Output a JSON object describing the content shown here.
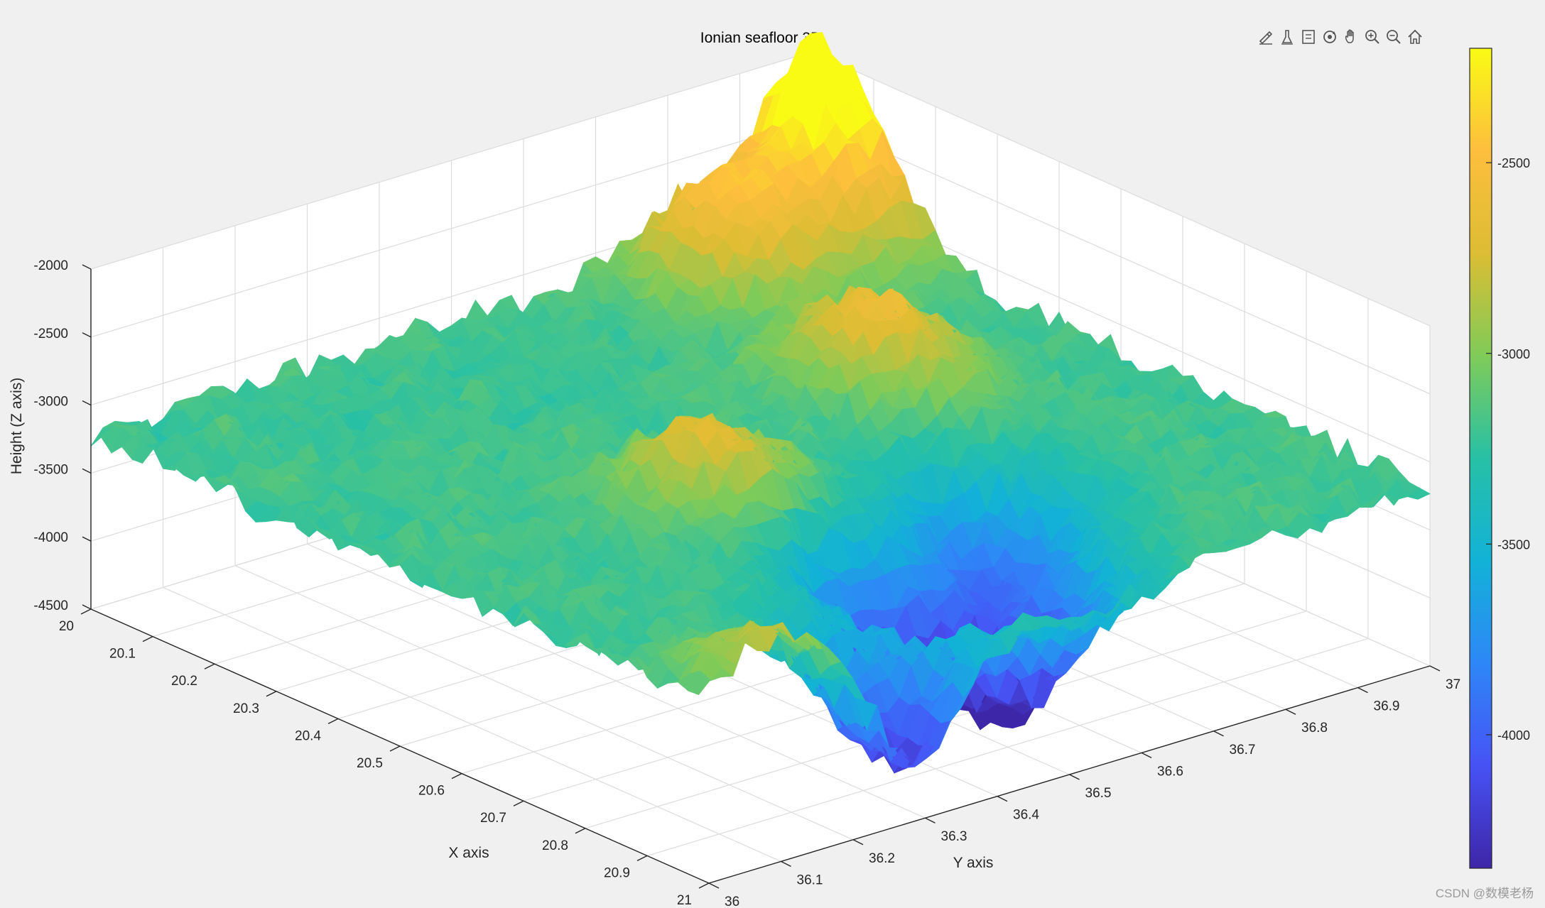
{
  "toolbar": {
    "icons": [
      "brush-icon",
      "data-tips-icon",
      "legend-icon",
      "rotate-3d-icon",
      "pan-hand-icon",
      "zoom-in-icon",
      "zoom-out-icon",
      "home-icon"
    ]
  },
  "watermark": "CSDN @数模老杨",
  "colors": {
    "background": "#f0f0f0",
    "axes_bg": "#ffffff",
    "grid": "#dcdcdc",
    "axis_line": "#262626",
    "colormap": [
      "#3e26a8",
      "#4752f5",
      "#2e87f7",
      "#12b2d7",
      "#27c0a6",
      "#80cb58",
      "#dcbd33",
      "#fdbe3d",
      "#f9fb15"
    ]
  },
  "chart_data": {
    "type": "surface",
    "title": "Ionian seafloor 3D",
    "xlabel": "X axis",
    "ylabel": "Y axis",
    "zlabel": "Height (Z axis)",
    "xlim": [
      20,
      21
    ],
    "ylim": [
      36,
      37
    ],
    "zlim": [
      -4500,
      -2000
    ],
    "xticks": [
      "20",
      "20.1",
      "20.2",
      "20.3",
      "20.4",
      "20.5",
      "20.6",
      "20.7",
      "20.8",
      "20.9",
      "21"
    ],
    "yticks": [
      "36",
      "36.1",
      "36.2",
      "36.3",
      "36.4",
      "36.5",
      "36.6",
      "36.7",
      "36.8",
      "36.9",
      "37"
    ],
    "zticks": [
      "-2000",
      "-2500",
      "-3000",
      "-3500",
      "-4000",
      "-4500"
    ],
    "colorbar": {
      "ticks": [
        "-2500",
        "-3000",
        "-3500",
        "-4000"
      ],
      "range": [
        -4350,
        -2200
      ]
    },
    "grid": true,
    "colormap": "parula",
    "features": [
      {
        "x": 20.0,
        "y": 37.0,
        "z": -2200
      },
      {
        "x": 20.1,
        "y": 36.95,
        "z": -2500
      },
      {
        "x": 20.1,
        "y": 36.8,
        "z": -2450
      },
      {
        "x": 20.4,
        "y": 36.75,
        "z": -2600
      },
      {
        "x": 20.85,
        "y": 36.55,
        "z": -4350
      },
      {
        "x": 20.75,
        "y": 36.45,
        "z": -4050
      },
      {
        "x": 20.95,
        "y": 36.3,
        "z": -4200
      },
      {
        "x": 20.7,
        "y": 36.65,
        "z": -3900
      },
      {
        "x": 20.55,
        "y": 36.4,
        "z": -2650
      },
      {
        "x": 21.0,
        "y": 36.1,
        "z": -2800
      }
    ]
  }
}
